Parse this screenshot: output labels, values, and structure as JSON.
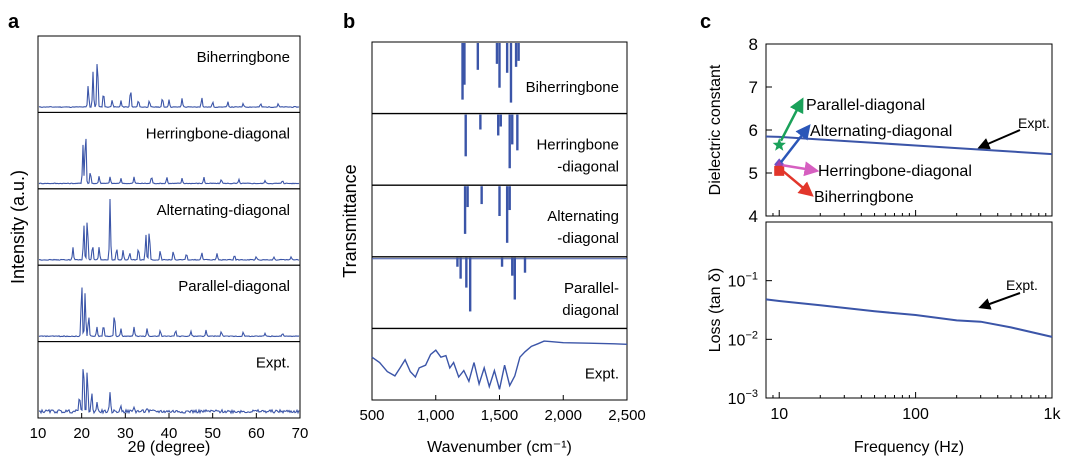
{
  "panels": {
    "a": "a",
    "b": "b",
    "c": "c"
  },
  "colors": {
    "line": "#3b55a8",
    "parallel_arrow": "#1aa15a",
    "alternating_arrow": "#2a56b8",
    "herringbone_arrow": "#d65fc0",
    "biherringbone_arrow": "#e2362b",
    "parallel_marker": "#1aa15a",
    "alternating_marker": "#6b52c8",
    "herringbone_marker": "#a83fa8",
    "biherringbone_marker": "#e2362b"
  },
  "chart_data": [
    {
      "type": "line",
      "panel": "a",
      "xlabel": "2θ (degree)",
      "ylabel": "Intensity (a.u.)",
      "xlim": [
        10,
        70
      ],
      "xticks": [
        "10",
        "20",
        "30",
        "40",
        "50",
        "60",
        "70"
      ],
      "series": [
        {
          "name": "Biherringbone",
          "peaks": [
            [
              21.5,
              0.35
            ],
            [
              22.6,
              0.55
            ],
            [
              23.6,
              0.85
            ],
            [
              25.0,
              0.25
            ],
            [
              27.0,
              0.12
            ],
            [
              29.0,
              0.1
            ],
            [
              31.2,
              0.3
            ],
            [
              33.0,
              0.12
            ],
            [
              35.5,
              0.1
            ],
            [
              38.5,
              0.15
            ],
            [
              40.0,
              0.12
            ],
            [
              43.0,
              0.14
            ],
            [
              47.5,
              0.16
            ],
            [
              50.0,
              0.08
            ],
            [
              53.5,
              0.08
            ],
            [
              57.0,
              0.06
            ],
            [
              61.0,
              0.05
            ],
            [
              65.0,
              0.05
            ]
          ]
        },
        {
          "name": "Herringbone-diagonal",
          "peaks": [
            [
              20.3,
              0.6
            ],
            [
              20.9,
              0.9
            ],
            [
              22.0,
              0.2
            ],
            [
              24.0,
              0.12
            ],
            [
              26.5,
              0.1
            ],
            [
              29.0,
              0.08
            ],
            [
              32.0,
              0.1
            ],
            [
              36.0,
              0.12
            ],
            [
              39.5,
              0.1
            ],
            [
              43.0,
              0.08
            ],
            [
              48.0,
              0.1
            ],
            [
              52.0,
              0.07
            ],
            [
              56.0,
              0.06
            ],
            [
              62.0,
              0.05
            ],
            [
              66.0,
              0.05
            ]
          ]
        },
        {
          "name": "Alternating-diagonal",
          "peaks": [
            [
              18.0,
              0.2
            ],
            [
              20.5,
              0.55
            ],
            [
              21.3,
              0.7
            ],
            [
              22.5,
              0.25
            ],
            [
              24.0,
              0.2
            ],
            [
              26.5,
              0.95
            ],
            [
              28.0,
              0.2
            ],
            [
              29.5,
              0.15
            ],
            [
              31.0,
              0.12
            ],
            [
              33.0,
              0.2
            ],
            [
              34.7,
              0.4
            ],
            [
              35.5,
              0.5
            ],
            [
              38.0,
              0.15
            ],
            [
              41.0,
              0.15
            ],
            [
              44.0,
              0.1
            ],
            [
              47.5,
              0.12
            ],
            [
              51.0,
              0.1
            ],
            [
              55.0,
              0.08
            ],
            [
              60.0,
              0.06
            ],
            [
              64.0,
              0.05
            ],
            [
              68.0,
              0.05
            ]
          ]
        },
        {
          "name": "Parallel-diagonal",
          "peaks": [
            [
              20.0,
              0.9
            ],
            [
              20.8,
              0.7
            ],
            [
              21.6,
              0.35
            ],
            [
              23.5,
              0.15
            ],
            [
              25.0,
              0.2
            ],
            [
              27.5,
              0.38
            ],
            [
              29.0,
              0.12
            ],
            [
              32.0,
              0.15
            ],
            [
              35.0,
              0.12
            ],
            [
              38.0,
              0.1
            ],
            [
              41.5,
              0.1
            ],
            [
              45.0,
              0.08
            ],
            [
              48.5,
              0.1
            ],
            [
              52.0,
              0.08
            ],
            [
              57.0,
              0.06
            ],
            [
              62.0,
              0.05
            ],
            [
              66.0,
              0.05
            ]
          ]
        },
        {
          "name": "Expt.",
          "peaks": [
            [
              19.5,
              0.3
            ],
            [
              20.4,
              0.85
            ],
            [
              21.3,
              0.7
            ],
            [
              22.3,
              0.3
            ],
            [
              23.5,
              0.15
            ],
            [
              26.5,
              0.28
            ],
            [
              29.0,
              0.1
            ],
            [
              32.0,
              0.08
            ],
            [
              35.0,
              0.06
            ]
          ]
        }
      ]
    },
    {
      "type": "bar",
      "panel": "b",
      "xlabel": "Wavenumber (cm⁻¹)",
      "ylabel": "Transmittance",
      "xlim": [
        500,
        2500
      ],
      "xticks": [
        "500",
        "1,000",
        "1,500",
        "2,000",
        "2,500"
      ],
      "series": [
        {
          "name": "Biherringbone",
          "lines": [
            [
              1210,
              0.95
            ],
            [
              1225,
              0.7
            ],
            [
              1330,
              0.45
            ],
            [
              1480,
              0.35
            ],
            [
              1500,
              0.75
            ],
            [
              1560,
              0.5
            ],
            [
              1590,
              1.0
            ],
            [
              1630,
              0.4
            ],
            [
              1650,
              0.3
            ]
          ]
        },
        {
          "name": "Herringbone\n-diagonal",
          "lines": [
            [
              1235,
              0.7
            ],
            [
              1350,
              0.25
            ],
            [
              1490,
              0.35
            ],
            [
              1510,
              0.2
            ],
            [
              1580,
              0.9
            ],
            [
              1600,
              0.5
            ],
            [
              1640,
              0.6
            ]
          ]
        },
        {
          "name": "Alternating\n-diagonal",
          "lines": [
            [
              1230,
              0.8
            ],
            [
              1250,
              0.35
            ],
            [
              1360,
              0.3
            ],
            [
              1500,
              0.5
            ],
            [
              1560,
              0.95
            ],
            [
              1580,
              0.4
            ]
          ]
        },
        {
          "name": "Parallel-\ndiagonal",
          "lines": [
            [
              1170,
              0.15
            ],
            [
              1195,
              0.35
            ],
            [
              1240,
              0.5
            ],
            [
              1270,
              0.9
            ],
            [
              1520,
              0.15
            ],
            [
              1600,
              0.3
            ],
            [
              1620,
              0.7
            ],
            [
              1700,
              0.25
            ]
          ]
        },
        {
          "name": "Expt.",
          "trace": [
            [
              500,
              0.35
            ],
            [
              560,
              0.45
            ],
            [
              620,
              0.62
            ],
            [
              680,
              0.7
            ],
            [
              720,
              0.55
            ],
            [
              760,
              0.4
            ],
            [
              800,
              0.62
            ],
            [
              840,
              0.72
            ],
            [
              870,
              0.55
            ],
            [
              920,
              0.5
            ],
            [
              960,
              0.3
            ],
            [
              1000,
              0.22
            ],
            [
              1040,
              0.35
            ],
            [
              1080,
              0.32
            ],
            [
              1110,
              0.55
            ],
            [
              1140,
              0.45
            ],
            [
              1180,
              0.72
            ],
            [
              1220,
              0.6
            ],
            [
              1260,
              0.8
            ],
            [
              1300,
              0.45
            ],
            [
              1340,
              0.85
            ],
            [
              1380,
              0.55
            ],
            [
              1420,
              0.9
            ],
            [
              1460,
              0.6
            ],
            [
              1500,
              0.95
            ],
            [
              1540,
              0.5
            ],
            [
              1580,
              0.88
            ],
            [
              1620,
              0.7
            ],
            [
              1660,
              0.35
            ],
            [
              1700,
              0.25
            ],
            [
              1750,
              0.15
            ],
            [
              1800,
              0.1
            ],
            [
              1850,
              0.05
            ],
            [
              1900,
              0.06
            ],
            [
              2000,
              0.08
            ],
            [
              2200,
              0.09
            ],
            [
              2400,
              0.1
            ],
            [
              2500,
              0.11
            ]
          ]
        }
      ]
    },
    {
      "type": "line",
      "panel": "c-top",
      "ylabel": "Dielectric constant",
      "xscale": "log",
      "xlim": [
        8,
        1000
      ],
      "ylim": [
        4,
        8
      ],
      "yticks": [
        "4",
        "5",
        "6",
        "7",
        "8"
      ],
      "series": [
        {
          "name": "Expt.",
          "x": [
            8,
            10,
            20,
            50,
            100,
            200,
            500,
            1000
          ],
          "y": [
            5.85,
            5.84,
            5.78,
            5.7,
            5.64,
            5.58,
            5.5,
            5.44
          ]
        }
      ],
      "markers": [
        {
          "name": "Parallel-diagonal",
          "x": 10,
          "y": 5.65,
          "shape": "star"
        },
        {
          "name": "Alternating-diagonal",
          "x": 10,
          "y": 5.2,
          "shape": "diamond"
        },
        {
          "name": "Herringbone-diagonal",
          "x": 10,
          "y": 5.18,
          "shape": "triangle"
        },
        {
          "name": "Biherringbone",
          "x": 10,
          "y": 5.05,
          "shape": "square"
        }
      ],
      "annotations": [
        "Parallel-diagonal",
        "Alternating-diagonal",
        "Herringbone-diagonal",
        "Biherringbone",
        "Expt."
      ]
    },
    {
      "type": "line",
      "panel": "c-bottom",
      "xlabel": "Frequency (Hz)",
      "ylabel": "Loss (tan δ)",
      "xscale": "log",
      "yscale": "log",
      "xlim": [
        8,
        1000
      ],
      "ylim": [
        0.001,
        1
      ],
      "xticks": [
        "10",
        "100",
        "1k"
      ],
      "series": [
        {
          "name": "Expt.",
          "x": [
            8,
            10,
            20,
            50,
            100,
            200,
            300,
            500,
            1000
          ],
          "y": [
            0.048,
            0.045,
            0.038,
            0.03,
            0.026,
            0.021,
            0.02,
            0.016,
            0.011
          ]
        }
      ],
      "annotations": [
        "Expt."
      ]
    }
  ]
}
